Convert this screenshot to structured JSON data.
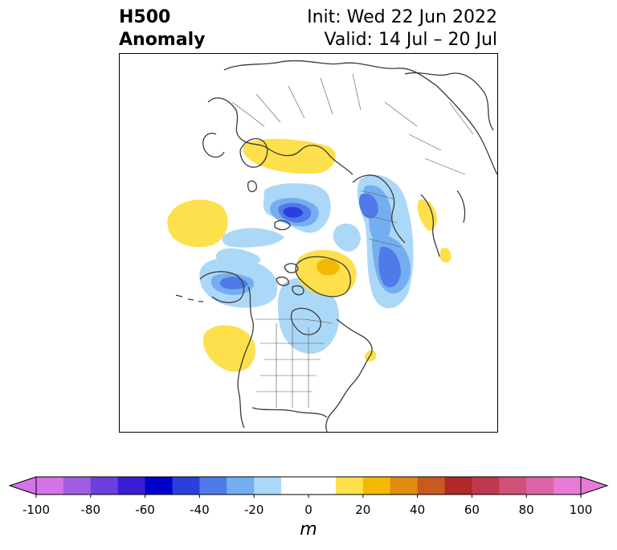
{
  "title": {
    "left_line1": "H500",
    "left_line2": "Anomaly",
    "right_line1": "Init: Wed 22 Jun 2022",
    "right_line2": "Valid: 14 Jul – 20 Jul"
  },
  "colorbar": {
    "unit": "m",
    "min": -100,
    "max": 100,
    "extend": "both",
    "bins": [
      {
        "from": -100,
        "to": -90,
        "color": "#d472e8"
      },
      {
        "from": -90,
        "to": -80,
        "color": "#a05de2"
      },
      {
        "from": -80,
        "to": -70,
        "color": "#6d3fdc"
      },
      {
        "from": -70,
        "to": -60,
        "color": "#3a1ed6"
      },
      {
        "from": -60,
        "to": -50,
        "color": "#0000cc"
      },
      {
        "from": -50,
        "to": -40,
        "color": "#2a40dc"
      },
      {
        "from": -40,
        "to": -30,
        "color": "#4f7be8"
      },
      {
        "from": -30,
        "to": -20,
        "color": "#74aef0"
      },
      {
        "from": -20,
        "to": -10,
        "color": "#acd8f8"
      },
      {
        "from": -10,
        "to": 0,
        "color": "#ffffff"
      },
      {
        "from": 0,
        "to": 10,
        "color": "#ffffff"
      },
      {
        "from": 10,
        "to": 20,
        "color": "#fde04c"
      },
      {
        "from": 20,
        "to": 30,
        "color": "#f3b800"
      },
      {
        "from": 30,
        "to": 40,
        "color": "#e08c10"
      },
      {
        "from": 40,
        "to": 50,
        "color": "#c85a1e"
      },
      {
        "from": 50,
        "to": 60,
        "color": "#b02828"
      },
      {
        "from": 60,
        "to": 70,
        "color": "#c03850"
      },
      {
        "from": 70,
        "to": 80,
        "color": "#d05078"
      },
      {
        "from": 80,
        "to": 90,
        "color": "#dc64a8"
      },
      {
        "from": 90,
        "to": 100,
        "color": "#e87ad8"
      }
    ],
    "under_color": "#d472e8",
    "over_color": "#e87ad8",
    "ticks": [
      "-100",
      "-80",
      "-60",
      "-40",
      "-20",
      "0",
      "20",
      "40",
      "60",
      "80",
      "100"
    ]
  },
  "map": {
    "projection": "north-polar-stereographic",
    "land_outline_color": "#3a3a3a",
    "anomaly_colors": {
      "light_blue": "#acd8f8",
      "mid_blue": "#74aef0",
      "blue": "#4f7be8",
      "dark_blue": "#2a40dc",
      "yellow": "#fde04c",
      "gold": "#f3b800"
    }
  }
}
